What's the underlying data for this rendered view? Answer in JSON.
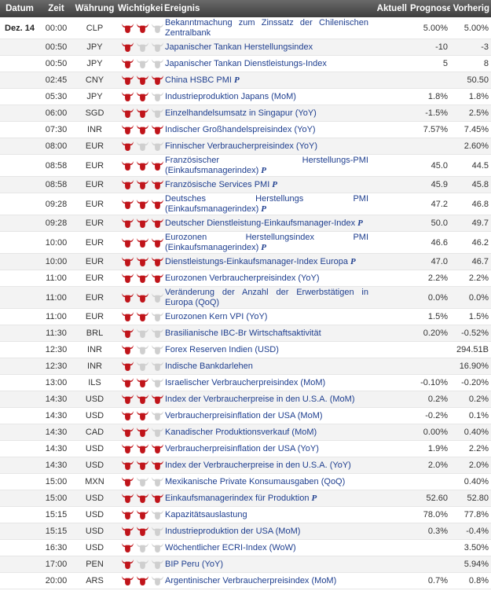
{
  "headers": {
    "datum": "Datum",
    "zeit": "Zeit",
    "waehrung": "Währung",
    "wichtigkeit": "Wichtigkeit",
    "ereignis": "Ereignis",
    "aktuell": "Aktuell",
    "prognose": "Prognose",
    "vorherig": "Vorherig"
  },
  "colors": {
    "bull_active": "#c0141a",
    "bull_inactive": "#cfcfcf",
    "link": "#1f3f8f"
  },
  "rows": [
    {
      "date": "Dez. 14",
      "time": "00:00",
      "cur": "CLP",
      "imp": 2,
      "event": "Bekanntmachung zum Zinssatz der Chilenischen Zentralbank",
      "prelim": false,
      "actual": "",
      "forecast": "5.00%",
      "prev": "5.00%",
      "tall": true
    },
    {
      "date": "",
      "time": "00:50",
      "cur": "JPY",
      "imp": 1,
      "event": "Japanischer Tankan Herstellungsindex",
      "prelim": false,
      "actual": "",
      "forecast": "-10",
      "prev": "-3",
      "tall": false
    },
    {
      "date": "",
      "time": "00:50",
      "cur": "JPY",
      "imp": 1,
      "event": "Japanischer Tankan Dienstleistungs-Index",
      "prelim": false,
      "actual": "",
      "forecast": "5",
      "prev": "8",
      "tall": false
    },
    {
      "date": "",
      "time": "02:45",
      "cur": "CNY",
      "imp": 3,
      "event": "China HSBC PMI",
      "prelim": true,
      "actual": "",
      "forecast": "",
      "prev": "50.50",
      "tall": false
    },
    {
      "date": "",
      "time": "05:30",
      "cur": "JPY",
      "imp": 2,
      "event": "Industrieproduktion Japans (MoM)",
      "prelim": false,
      "actual": "",
      "forecast": "1.8%",
      "prev": "1.8%",
      "tall": false
    },
    {
      "date": "",
      "time": "06:00",
      "cur": "SGD",
      "imp": 2,
      "event": "Einzelhandelsumsatz in Singapur (YoY)",
      "prelim": false,
      "actual": "",
      "forecast": "-1.5%",
      "prev": "2.5%",
      "tall": false
    },
    {
      "date": "",
      "time": "07:30",
      "cur": "INR",
      "imp": 3,
      "event": "Indischer Großhandelspreisindex (YoY)",
      "prelim": false,
      "actual": "",
      "forecast": "7.57%",
      "prev": "7.45%",
      "tall": false
    },
    {
      "date": "",
      "time": "08:00",
      "cur": "EUR",
      "imp": 1,
      "event": "Finnischer Verbraucherpreisindex (YoY)",
      "prelim": false,
      "actual": "",
      "forecast": "",
      "prev": "2.60%",
      "tall": false
    },
    {
      "date": "",
      "time": "08:58",
      "cur": "EUR",
      "imp": 3,
      "event": "Französischer Herstellungs-PMI (Einkaufsmanagerindex)",
      "prelim": true,
      "actual": "",
      "forecast": "45.0",
      "prev": "44.5",
      "tall": true
    },
    {
      "date": "",
      "time": "08:58",
      "cur": "EUR",
      "imp": 3,
      "event": "Französische Services PMI",
      "prelim": true,
      "actual": "",
      "forecast": "45.9",
      "prev": "45.8",
      "tall": false
    },
    {
      "date": "",
      "time": "09:28",
      "cur": "EUR",
      "imp": 3,
      "event": "Deutsches Herstellungs PMI (Einkaufsmanagerindex)",
      "prelim": true,
      "actual": "",
      "forecast": "47.2",
      "prev": "46.8",
      "tall": true
    },
    {
      "date": "",
      "time": "09:28",
      "cur": "EUR",
      "imp": 3,
      "event": "Deutscher Dienstleistung-Einkaufsmanager-Index",
      "prelim": true,
      "actual": "",
      "forecast": "50.0",
      "prev": "49.7",
      "tall": false
    },
    {
      "date": "",
      "time": "10:00",
      "cur": "EUR",
      "imp": 3,
      "event": "Eurozonen Herstellungsindex PMI (Einkaufsmanagerindex)",
      "prelim": true,
      "actual": "",
      "forecast": "46.6",
      "prev": "46.2",
      "tall": true
    },
    {
      "date": "",
      "time": "10:00",
      "cur": "EUR",
      "imp": 3,
      "event": "Dienstleistungs-Einkaufsmanager-Index Europa",
      "prelim": true,
      "actual": "",
      "forecast": "47.0",
      "prev": "46.7",
      "tall": false
    },
    {
      "date": "",
      "time": "11:00",
      "cur": "EUR",
      "imp": 3,
      "event": "Eurozonen Verbraucherpreisindex (YoY)",
      "prelim": false,
      "actual": "",
      "forecast": "2.2%",
      "prev": "2.2%",
      "tall": false
    },
    {
      "date": "",
      "time": "11:00",
      "cur": "EUR",
      "imp": 2,
      "event": "Veränderung der Anzahl der Erwerbstätigen in Europa (QoQ)",
      "prelim": false,
      "actual": "",
      "forecast": "0.0%",
      "prev": "0.0%",
      "tall": true
    },
    {
      "date": "",
      "time": "11:00",
      "cur": "EUR",
      "imp": 2,
      "event": "Eurozonen Kern VPI (YoY)",
      "prelim": false,
      "actual": "",
      "forecast": "1.5%",
      "prev": "1.5%",
      "tall": false
    },
    {
      "date": "",
      "time": "11:30",
      "cur": "BRL",
      "imp": 1,
      "event": "Brasilianische IBC-Br Wirtschaftsaktivität",
      "prelim": false,
      "actual": "",
      "forecast": "0.20%",
      "prev": "-0.52%",
      "tall": false
    },
    {
      "date": "",
      "time": "12:30",
      "cur": "INR",
      "imp": 1,
      "event": "Forex Reserven Indien (USD)",
      "prelim": false,
      "actual": "",
      "forecast": "",
      "prev": "294.51B",
      "tall": false
    },
    {
      "date": "",
      "time": "12:30",
      "cur": "INR",
      "imp": 1,
      "event": "Indische Bankdarlehen",
      "prelim": false,
      "actual": "",
      "forecast": "",
      "prev": "16.90%",
      "tall": false
    },
    {
      "date": "",
      "time": "13:00",
      "cur": "ILS",
      "imp": 2,
      "event": "Israelischer Verbraucherpreisindex (MoM)",
      "prelim": false,
      "actual": "",
      "forecast": "-0.10%",
      "prev": "-0.20%",
      "tall": false
    },
    {
      "date": "",
      "time": "14:30",
      "cur": "USD",
      "imp": 3,
      "event": "Index der Verbraucherpreise in den U.S.A. (MoM)",
      "prelim": false,
      "actual": "",
      "forecast": "0.2%",
      "prev": "0.2%",
      "tall": false
    },
    {
      "date": "",
      "time": "14:30",
      "cur": "USD",
      "imp": 2,
      "event": "Verbraucherpreisinflation der USA (MoM)",
      "prelim": false,
      "actual": "",
      "forecast": "-0.2%",
      "prev": "0.1%",
      "tall": false
    },
    {
      "date": "",
      "time": "14:30",
      "cur": "CAD",
      "imp": 2,
      "event": "Kanadischer Produktionsverkauf (MoM)",
      "prelim": false,
      "actual": "",
      "forecast": "0.00%",
      "prev": "0.40%",
      "tall": false
    },
    {
      "date": "",
      "time": "14:30",
      "cur": "USD",
      "imp": 3,
      "event": "Verbraucherpreisinflation der USA (YoY)",
      "prelim": false,
      "actual": "",
      "forecast": "1.9%",
      "prev": "2.2%",
      "tall": false
    },
    {
      "date": "",
      "time": "14:30",
      "cur": "USD",
      "imp": 3,
      "event": "Index der Verbraucherpreise in den U.S.A. (YoY)",
      "prelim": false,
      "actual": "",
      "forecast": "2.0%",
      "prev": "2.0%",
      "tall": false
    },
    {
      "date": "",
      "time": "15:00",
      "cur": "MXN",
      "imp": 1,
      "event": "Mexikanische Private Konsumausgaben (QoQ)",
      "prelim": false,
      "actual": "",
      "forecast": "",
      "prev": "0.40%",
      "tall": false
    },
    {
      "date": "",
      "time": "15:00",
      "cur": "USD",
      "imp": 3,
      "event": "Einkaufsmanagerindex für Produktion",
      "prelim": true,
      "actual": "",
      "forecast": "52.60",
      "prev": "52.80",
      "tall": false
    },
    {
      "date": "",
      "time": "15:15",
      "cur": "USD",
      "imp": 2,
      "event": "Kapazitätsauslastung",
      "prelim": false,
      "actual": "",
      "forecast": "78.0%",
      "prev": "77.8%",
      "tall": false
    },
    {
      "date": "",
      "time": "15:15",
      "cur": "USD",
      "imp": 2,
      "event": "Industrieproduktion der USA (MoM)",
      "prelim": false,
      "actual": "",
      "forecast": "0.3%",
      "prev": "-0.4%",
      "tall": false
    },
    {
      "date": "",
      "time": "16:30",
      "cur": "USD",
      "imp": 1,
      "event": "Wöchentlicher ECRI-Index (WoW)",
      "prelim": false,
      "actual": "",
      "forecast": "",
      "prev": "3.50%",
      "tall": false
    },
    {
      "date": "",
      "time": "17:00",
      "cur": "PEN",
      "imp": 1,
      "event": "BIP Peru (YoY)",
      "prelim": false,
      "actual": "",
      "forecast": "",
      "prev": "5.94%",
      "tall": false
    },
    {
      "date": "",
      "time": "20:00",
      "cur": "ARS",
      "imp": 2,
      "event": "Argentinischer Verbraucherpreisindex (MoM)",
      "prelim": false,
      "actual": "",
      "forecast": "0.7%",
      "prev": "0.8%",
      "tall": false
    }
  ]
}
